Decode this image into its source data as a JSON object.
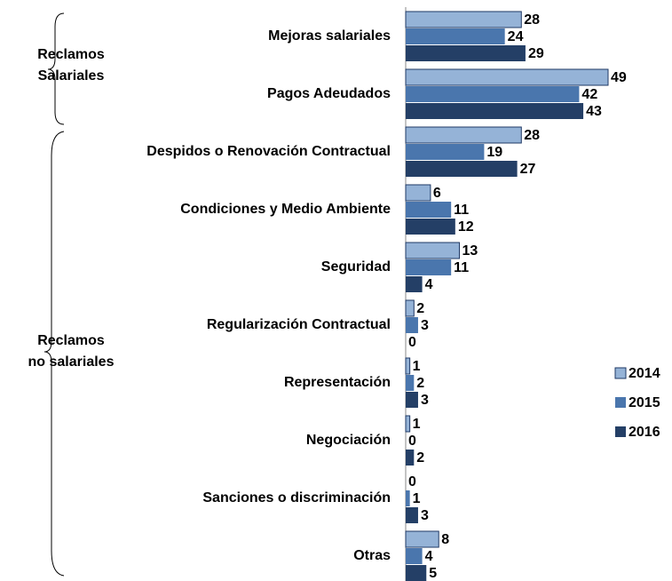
{
  "chart_data": {
    "type": "bar",
    "orientation": "horizontal",
    "categories": [
      "Mejoras salariales",
      "Pagos Adeudados",
      "Despidos o Renovación Contractual",
      "Condiciones y Medio Ambiente",
      "Seguridad",
      "Regularización  Contractual",
      "Representación",
      "Negociación",
      "Sanciones o discriminación",
      "Otras"
    ],
    "series": [
      {
        "name": "2014",
        "color": "#95b3d7",
        "values": [
          28,
          49,
          28,
          6,
          13,
          2,
          1,
          1,
          0,
          8
        ]
      },
      {
        "name": "2015",
        "color": "#4a76ad",
        "values": [
          24,
          42,
          19,
          11,
          11,
          3,
          2,
          0,
          1,
          4
        ]
      },
      {
        "name": "2016",
        "color": "#243f66",
        "values": [
          29,
          43,
          27,
          12,
          4,
          0,
          3,
          2,
          3,
          5
        ]
      }
    ],
    "groups": [
      {
        "label": [
          "Reclamos",
          "Salariales"
        ]
      },
      {
        "label": [
          "Reclamos",
          "no salariales"
        ]
      }
    ],
    "legend": "right"
  }
}
